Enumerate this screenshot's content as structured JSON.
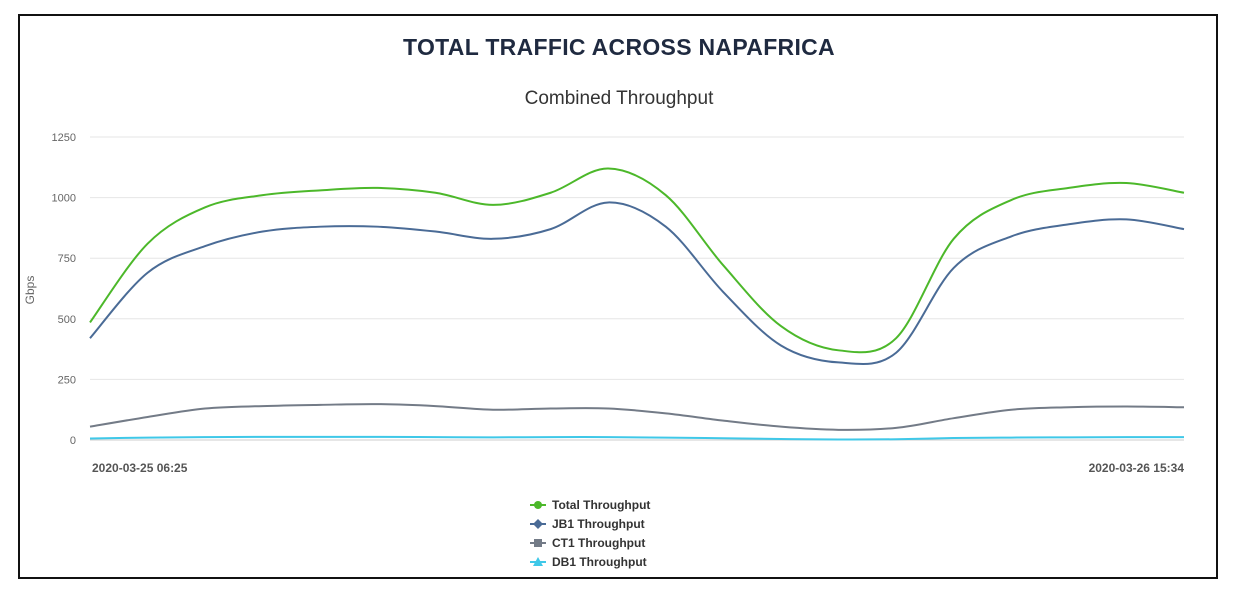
{
  "title": "TOTAL TRAFFIC ACROSS NAPAFRICA",
  "chart_data": {
    "type": "line",
    "title": "Combined Throughput",
    "ylabel": "Gbps",
    "xlabel": "",
    "ylim": [
      0,
      1250
    ],
    "yticks": [
      0,
      250,
      500,
      750,
      1000,
      1250
    ],
    "grid": true,
    "legend_placement": "bottom-center",
    "x_start_label": "2020-03-25 06:25",
    "x_end_label": "2020-03-26 15:34",
    "x": [
      "2020-03-25 06:25",
      "2020-03-25 08:10",
      "2020-03-25 09:55",
      "2020-03-25 11:40",
      "2020-03-25 13:25",
      "2020-03-25 15:10",
      "2020-03-25 16:55",
      "2020-03-25 18:40",
      "2020-03-25 20:25",
      "2020-03-25 22:10",
      "2020-03-25 23:55",
      "2020-03-26 01:40",
      "2020-03-26 03:25",
      "2020-03-26 05:10",
      "2020-03-26 06:55",
      "2020-03-26 08:40",
      "2020-03-26 10:25",
      "2020-03-26 12:10",
      "2020-03-26 13:55",
      "2020-03-26 15:34"
    ],
    "series": [
      {
        "name": "Total Throughput",
        "color": "#4cb82a",
        "marker": "circle",
        "values": [
          485,
          810,
          960,
          1010,
          1030,
          1040,
          1020,
          970,
          1020,
          1120,
          1010,
          720,
          470,
          370,
          420,
          830,
          990,
          1040,
          1060,
          1020
        ]
      },
      {
        "name": "JB1 Throughput",
        "color": "#4a6b96",
        "marker": "diamond",
        "values": [
          420,
          690,
          800,
          860,
          880,
          880,
          860,
          830,
          870,
          980,
          880,
          610,
          390,
          320,
          360,
          710,
          840,
          890,
          910,
          870
        ]
      },
      {
        "name": "CT1 Throughput",
        "color": "#737b87",
        "marker": "square",
        "values": [
          55,
          95,
          130,
          140,
          145,
          148,
          140,
          125,
          130,
          130,
          110,
          80,
          55,
          42,
          50,
          90,
          125,
          135,
          138,
          135
        ]
      },
      {
        "name": "DB1 Throughput",
        "color": "#3fc8e8",
        "marker": "triangle",
        "values": [
          6,
          10,
          12,
          13,
          13,
          13,
          12,
          11,
          12,
          12,
          10,
          7,
          4,
          2,
          3,
          8,
          10,
          11,
          12,
          12
        ]
      }
    ]
  }
}
